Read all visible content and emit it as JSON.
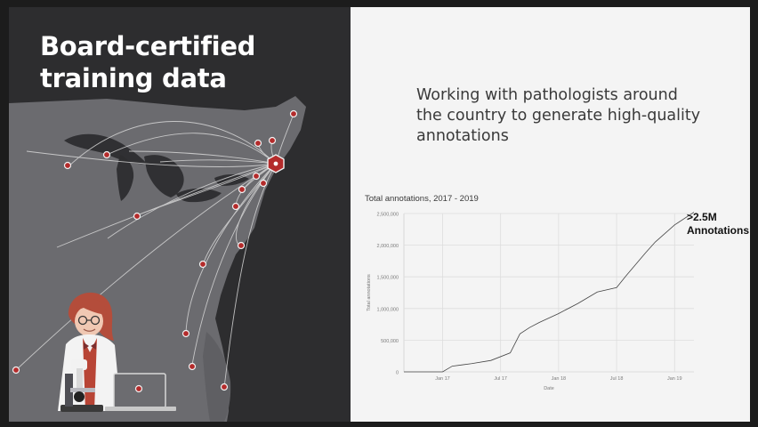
{
  "slide": {
    "title_lines": [
      "Board-certified",
      "training data"
    ],
    "intro_lines": [
      "Working with pathologists around",
      "the country to generate high-quality",
      "annotations"
    ]
  },
  "colors": {
    "background": "#1c1c1c",
    "left_panel": "#2d2d2f",
    "map_land": "#6b6b6f",
    "network_line": "#d7d7d7",
    "pin_fill": "#b42b2b",
    "right_panel": "#f4f4f4",
    "chart_line": "#444444",
    "grid": "#dddddd"
  },
  "illustration": {
    "subject": "pathologist",
    "props": [
      "microscope",
      "laptop"
    ],
    "icons": [
      "hub-icon",
      "location-pin-icon"
    ]
  },
  "chart": {
    "callout_lines": [
      ">2.5M",
      "Annotations"
    ]
  },
  "chart_data": {
    "type": "line",
    "title": "Total annotations, 2017 - 2019",
    "xlabel": "Date",
    "ylabel": "Total annotations",
    "x_tick_labels": [
      "Jan 17",
      "Jul 17",
      "Jan 18",
      "Jul 18",
      "Jan 19"
    ],
    "y_tick_labels": [
      "0",
      "500,000",
      "1,000,000",
      "1,500,000",
      "2,000,000",
      "2,500,000"
    ],
    "ylim": [
      0,
      2500000
    ],
    "xlim": [
      "2016-09",
      "2019-03"
    ],
    "grid": true,
    "series": [
      {
        "x": [
          "2016-09",
          "2016-11",
          "2017-01",
          "2017-02",
          "2017-03",
          "2017-04",
          "2017-06",
          "2017-08",
          "2017-09",
          "2017-10",
          "2017-11",
          "2018-01",
          "2018-03",
          "2018-05",
          "2018-07",
          "2018-08",
          "2018-10",
          "2018-11",
          "2019-01",
          "2019-03"
        ],
        "y": [
          0,
          0,
          0,
          90000,
          110000,
          130000,
          180000,
          300000,
          600000,
          700000,
          780000,
          920000,
          1080000,
          1260000,
          1330000,
          1520000,
          1880000,
          2050000,
          2320000,
          2520000
        ]
      }
    ]
  }
}
